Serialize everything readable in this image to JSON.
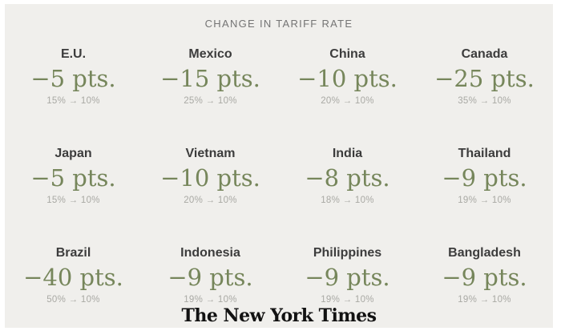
{
  "header": {
    "title": "CHANGE IN TARIFF RATE"
  },
  "colors": {
    "card_background": "#f0efec",
    "page_background": "#ffffff",
    "change_value_green": "#76865b",
    "country_text": "#3c3c3c",
    "range_text": "#a9a9a4",
    "header_text": "#747474"
  },
  "chart_data": {
    "type": "table",
    "title": "CHANGE IN TARIFF RATE",
    "layout": "4 columns x 3 rows of country tiles",
    "unit": "percentage points",
    "entries": [
      {
        "country": "E.U.",
        "change_pts": -5,
        "from": "15%",
        "to": "10%",
        "change": "−5 pts.",
        "range": "15% → 10%"
      },
      {
        "country": "Mexico",
        "change_pts": -15,
        "from": "25%",
        "to": "10%",
        "change": "−15 pts.",
        "range": "25% → 10%"
      },
      {
        "country": "China",
        "change_pts": -10,
        "from": "20%",
        "to": "10%",
        "change": "−10 pts.",
        "range": "20% → 10%"
      },
      {
        "country": "Canada",
        "change_pts": -25,
        "from": "35%",
        "to": "10%",
        "change": "−25 pts.",
        "range": "35% → 10%"
      },
      {
        "country": "Japan",
        "change_pts": -5,
        "from": "15%",
        "to": "10%",
        "change": "−5 pts.",
        "range": "15% → 10%"
      },
      {
        "country": "Vietnam",
        "change_pts": -10,
        "from": "20%",
        "to": "10%",
        "change": "−10 pts.",
        "range": "20% → 10%"
      },
      {
        "country": "India",
        "change_pts": -8,
        "from": "18%",
        "to": "10%",
        "change": "−8 pts.",
        "range": "18% → 10%"
      },
      {
        "country": "Thailand",
        "change_pts": -9,
        "from": "19%",
        "to": "10%",
        "change": "−9 pts.",
        "range": "19% → 10%"
      },
      {
        "country": "Brazil",
        "change_pts": -40,
        "from": "50%",
        "to": "10%",
        "change": "−40 pts.",
        "range": "50% → 10%"
      },
      {
        "country": "Indonesia",
        "change_pts": -9,
        "from": "19%",
        "to": "10%",
        "change": "−9 pts.",
        "range": "19% → 10%"
      },
      {
        "country": "Philippines",
        "change_pts": -9,
        "from": "19%",
        "to": "10%",
        "change": "−9 pts.",
        "range": "19% → 10%"
      },
      {
        "country": "Bangladesh",
        "change_pts": -9,
        "from": "19%",
        "to": "10%",
        "change": "−9 pts.",
        "range": "19% → 10%"
      }
    ]
  },
  "footer": {
    "logo_text": "The New York Times"
  }
}
